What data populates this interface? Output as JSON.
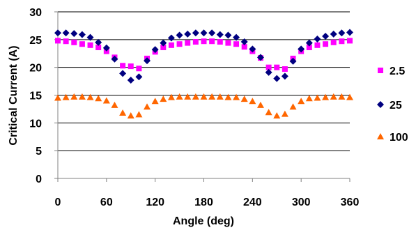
{
  "chart_data": {
    "type": "scatter",
    "xlabel": "Angle (deg)",
    "ylabel": "Critical Current (A)",
    "xlim": [
      0,
      360
    ],
    "ylim": [
      0,
      30
    ],
    "x_ticks": [
      "0",
      "60",
      "120",
      "180",
      "240",
      "300",
      "360"
    ],
    "y_ticks": [
      "0",
      "5",
      "10",
      "15",
      "20",
      "25",
      "30"
    ],
    "grid": "horizontal",
    "legend_position": "right",
    "x": [
      0,
      10,
      20,
      30,
      40,
      50,
      60,
      70,
      80,
      90,
      100,
      110,
      120,
      130,
      140,
      150,
      160,
      170,
      180,
      190,
      200,
      210,
      220,
      230,
      240,
      250,
      260,
      270,
      280,
      290,
      300,
      310,
      320,
      330,
      340,
      350,
      360
    ],
    "series": [
      {
        "name": "2.5",
        "color": "#FF00FF",
        "marker": "square",
        "values": [
          24.8,
          24.7,
          24.5,
          24.2,
          24.0,
          23.6,
          22.9,
          21.8,
          20.3,
          20.2,
          19.8,
          21.6,
          22.8,
          23.6,
          24.0,
          24.2,
          24.4,
          24.6,
          24.7,
          24.7,
          24.6,
          24.4,
          24.2,
          23.7,
          22.9,
          21.7,
          20.0,
          20.0,
          19.7,
          21.6,
          22.9,
          23.6,
          24.0,
          24.2,
          24.5,
          24.7,
          24.8
        ]
      },
      {
        "name": "25",
        "color": "#000080",
        "marker": "diamond",
        "values": [
          26.2,
          26.2,
          26.1,
          25.9,
          25.4,
          24.5,
          23.5,
          21.5,
          18.9,
          17.7,
          18.3,
          21.2,
          23.2,
          24.4,
          25.3,
          25.8,
          26.0,
          26.2,
          26.2,
          26.2,
          25.9,
          25.8,
          25.4,
          24.6,
          23.3,
          21.8,
          19.1,
          18.0,
          18.4,
          21.1,
          23.3,
          24.4,
          25.1,
          25.6,
          26.0,
          26.2,
          26.3
        ]
      },
      {
        "name": "100",
        "color": "#FF6600",
        "marker": "triangle",
        "values": [
          14.5,
          14.6,
          14.7,
          14.7,
          14.6,
          14.4,
          14.0,
          13.2,
          11.8,
          11.3,
          11.5,
          12.9,
          13.9,
          14.3,
          14.6,
          14.7,
          14.7,
          14.7,
          14.7,
          14.7,
          14.7,
          14.6,
          14.6,
          14.3,
          13.9,
          13.2,
          11.9,
          11.3,
          11.6,
          12.9,
          13.9,
          14.4,
          14.5,
          14.6,
          14.7,
          14.7,
          14.6
        ]
      }
    ]
  }
}
